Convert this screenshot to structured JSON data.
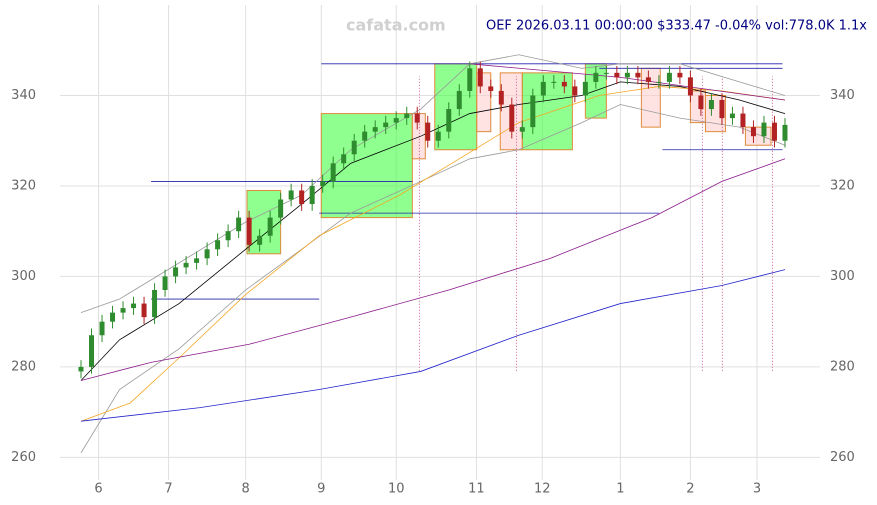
{
  "chart_data": {
    "type": "candlestick",
    "title": "OEF 2026.03.11 00:00:00 $333.47 -0.04% vol:778.0K 1.1x",
    "watermark": "cafata.com",
    "x": [
      6,
      9,
      12,
      15,
      18,
      21,
      24,
      27,
      30,
      33,
      36,
      39,
      42,
      45,
      48,
      51,
      54,
      57,
      60,
      63,
      66,
      69,
      72,
      75,
      78,
      81,
      84,
      87,
      90,
      93,
      96,
      99,
      102,
      105,
      108,
      111,
      114,
      117,
      120,
      123,
      126,
      129,
      132,
      135,
      138,
      141,
      144,
      147,
      150,
      153,
      156,
      159,
      162,
      165,
      168,
      171,
      174,
      177,
      180,
      183,
      186,
      189,
      192,
      195,
      198,
      201,
      204,
      207
    ],
    "open": [
      279,
      280,
      287,
      290,
      292,
      293,
      294,
      291,
      297,
      300,
      302,
      303,
      304,
      306,
      308,
      310,
      313,
      307,
      309,
      313,
      317,
      319,
      316,
      320,
      321,
      325,
      327,
      330,
      332,
      333,
      334,
      335,
      336,
      334,
      330,
      332,
      337,
      341,
      346,
      342,
      341,
      338,
      332,
      333,
      340,
      343,
      343,
      342,
      340,
      343,
      345,
      345,
      344,
      345,
      344,
      343,
      343,
      345,
      344,
      340,
      337,
      339,
      335,
      336,
      333,
      331,
      334,
      330
    ],
    "high": [
      281.5,
      288.5,
      291.5,
      293.5,
      294.5,
      295.5,
      295.5,
      298.5,
      301.5,
      303.5,
      304.5,
      305.5,
      307.5,
      309.5,
      311.5,
      314.5,
      314.5,
      310.5,
      314.5,
      318.5,
      320.5,
      320.5,
      321.5,
      322.5,
      326.5,
      328.5,
      331.5,
      333.5,
      334.5,
      335.5,
      336.5,
      337.5,
      337.5,
      335.5,
      333.5,
      338.5,
      342.5,
      347.5,
      347.5,
      343.5,
      342.5,
      339.5,
      334.5,
      341.5,
      344.5,
      344.5,
      344.5,
      343.5,
      344.5,
      346.5,
      346.5,
      346.5,
      346.5,
      346.5,
      345.5,
      344.5,
      346.5,
      346.5,
      345.5,
      341.5,
      340.5,
      340.5,
      337.5,
      337.5,
      334.5,
      335.5,
      335.5,
      335
    ],
    "low": [
      277.5,
      278.5,
      285.5,
      288.5,
      290.5,
      291.5,
      289.5,
      289.5,
      295.5,
      298.5,
      300.5,
      301.5,
      302.5,
      304.5,
      306.5,
      308.5,
      305.5,
      305.5,
      307.5,
      311.5,
      315.5,
      314.5,
      314.5,
      318.5,
      319.5,
      323.5,
      325.5,
      328.5,
      330.5,
      331.5,
      332.5,
      333.5,
      332.5,
      328.5,
      328.5,
      330.5,
      335.5,
      339.5,
      340.5,
      339.5,
      336.5,
      330.5,
      330.5,
      331.5,
      338.5,
      341.5,
      340.5,
      338.5,
      338.5,
      341.5,
      343.5,
      342.5,
      342.5,
      342.5,
      341.5,
      341.5,
      341.5,
      342.5,
      338.5,
      335.5,
      335.5,
      333.5,
      333.5,
      331.5,
      329.5,
      329.5,
      328.5,
      328.5
    ],
    "close": [
      280,
      287,
      290,
      292,
      293,
      294,
      291,
      297,
      300,
      302,
      303,
      304,
      306,
      308,
      310,
      313,
      307,
      309,
      313,
      317,
      319,
      316,
      320,
      321,
      325,
      327,
      330,
      332,
      333,
      334,
      335,
      336,
      334,
      330,
      332,
      337,
      341,
      346,
      342,
      341,
      338,
      332,
      333,
      340,
      343,
      343,
      342,
      340,
      343,
      345,
      345,
      344,
      345,
      344,
      343,
      343,
      345,
      344,
      340,
      337,
      339,
      335,
      336,
      333,
      331,
      334,
      330,
      333.5
    ],
    "up_color": "#2e8b2e",
    "down_color": "#b22222",
    "lines": [
      {
        "color": "#999999",
        "x": [
          6,
          17,
          34,
          53,
          69,
          83,
          103,
          117,
          131,
          149,
          160,
          177,
          194,
          207
        ],
        "y": [
          292,
          295,
          303,
          312,
          318,
          328,
          337,
          347,
          349,
          346,
          347,
          347,
          343,
          340
        ]
      },
      {
        "color": "#999999",
        "x": [
          6,
          17,
          34,
          53,
          69,
          83,
          103,
          117,
          131,
          149,
          160,
          177,
          194,
          207
        ],
        "y": [
          261,
          275,
          284,
          297,
          306,
          314,
          321,
          326,
          328,
          334,
          338,
          335,
          333,
          329
        ]
      },
      {
        "color": "#000000",
        "x": [
          6,
          17,
          34,
          53,
          69,
          83,
          103,
          117,
          131,
          149,
          160,
          177,
          194,
          207
        ],
        "y": [
          277,
          286,
          294,
          306,
          316,
          325,
          331,
          336,
          338,
          340,
          343,
          342,
          339,
          336
        ]
      },
      {
        "color": "#f5a623",
        "x": [
          6,
          20,
          34,
          53,
          74,
          97,
          114,
          131,
          154,
          171,
          189,
          207
        ],
        "y": [
          268,
          272,
          282,
          296,
          309,
          318,
          326,
          334,
          340,
          342,
          341,
          339
        ]
      },
      {
        "color": "#8b1a8b",
        "x": [
          6,
          26,
          54,
          83,
          111,
          140,
          169,
          189,
          207
        ],
        "y": [
          277,
          281,
          285,
          291,
          297,
          304,
          313,
          321,
          326
        ]
      },
      {
        "color": "#2222cc",
        "x": [
          6,
          40,
          74,
          103,
          131,
          160,
          189,
          207
        ],
        "y": [
          268,
          271,
          275,
          279,
          287,
          294,
          298,
          301.5
        ]
      },
      {
        "color": "#8b1a8b",
        "x": [
          117,
          160,
          207
        ],
        "y": [
          347,
          344,
          339
        ]
      }
    ],
    "boxes": [
      {
        "color": "#33ff33",
        "x": [
          53.4,
          63
        ],
        "y": [
          305,
          319
        ]
      },
      {
        "color": "#33ff33",
        "x": [
          74.6,
          100.6
        ],
        "y": [
          313,
          336
        ]
      },
      {
        "color": "#ffcccc",
        "x": [
          100.6,
          104.3
        ],
        "y": [
          326,
          336
        ]
      },
      {
        "color": "#33ff33",
        "x": [
          107,
          119
        ],
        "y": [
          328,
          347
        ]
      },
      {
        "color": "#ffcccc",
        "x": [
          119,
          123
        ],
        "y": [
          332,
          345
        ]
      },
      {
        "color": "#ffcccc",
        "x": [
          125.7,
          132
        ],
        "y": [
          328,
          345
        ]
      },
      {
        "color": "#33ff33",
        "x": [
          132,
          146.3
        ],
        "y": [
          328,
          345
        ]
      },
      {
        "color": "#33ff33",
        "x": [
          150,
          156
        ],
        "y": [
          335,
          347
        ]
      },
      {
        "color": "#ffcccc",
        "x": [
          166,
          171.4
        ],
        "y": [
          333,
          346
        ]
      },
      {
        "color": "#ffcccc",
        "x": [
          180,
          184.3
        ],
        "y": [
          334,
          341
        ]
      },
      {
        "color": "#ffcccc",
        "x": [
          184.3,
          190
        ],
        "y": [
          332,
          340
        ]
      },
      {
        "color": "#ffcccc",
        "x": [
          195.7,
          203
        ],
        "y": [
          329,
          333
        ]
      }
    ],
    "hlines": [
      {
        "x": [
          26,
          74
        ],
        "y": 295
      },
      {
        "x": [
          26,
          100.6
        ],
        "y": 321
      },
      {
        "x": [
          74,
          171
        ],
        "y": 314
      },
      {
        "x": [
          74.6,
          206.3
        ],
        "y": 347
      },
      {
        "x": [
          154,
          206.3
        ],
        "y": 346
      },
      {
        "x": [
          172,
          206.3
        ],
        "y": 328
      }
    ],
    "vlines": [
      102.6,
      130.3,
      183.4,
      189.1,
      203.4
    ],
    "xlim": [
      0,
      217
    ],
    "ylim": [
      255,
      360
    ],
    "xticks": [
      {
        "value": 11,
        "label": "6"
      },
      {
        "value": 31,
        "label": "7"
      },
      {
        "value": 53,
        "label": "8"
      },
      {
        "value": 74.6,
        "label": "9"
      },
      {
        "value": 96,
        "label": "10"
      },
      {
        "value": 118.9,
        "label": "11"
      },
      {
        "value": 137.7,
        "label": "12"
      },
      {
        "value": 160,
        "label": "1"
      },
      {
        "value": 180,
        "label": "2"
      },
      {
        "value": 199,
        "label": "3"
      }
    ],
    "yticks": [
      260,
      280,
      300,
      320,
      340
    ],
    "grid": true
  }
}
